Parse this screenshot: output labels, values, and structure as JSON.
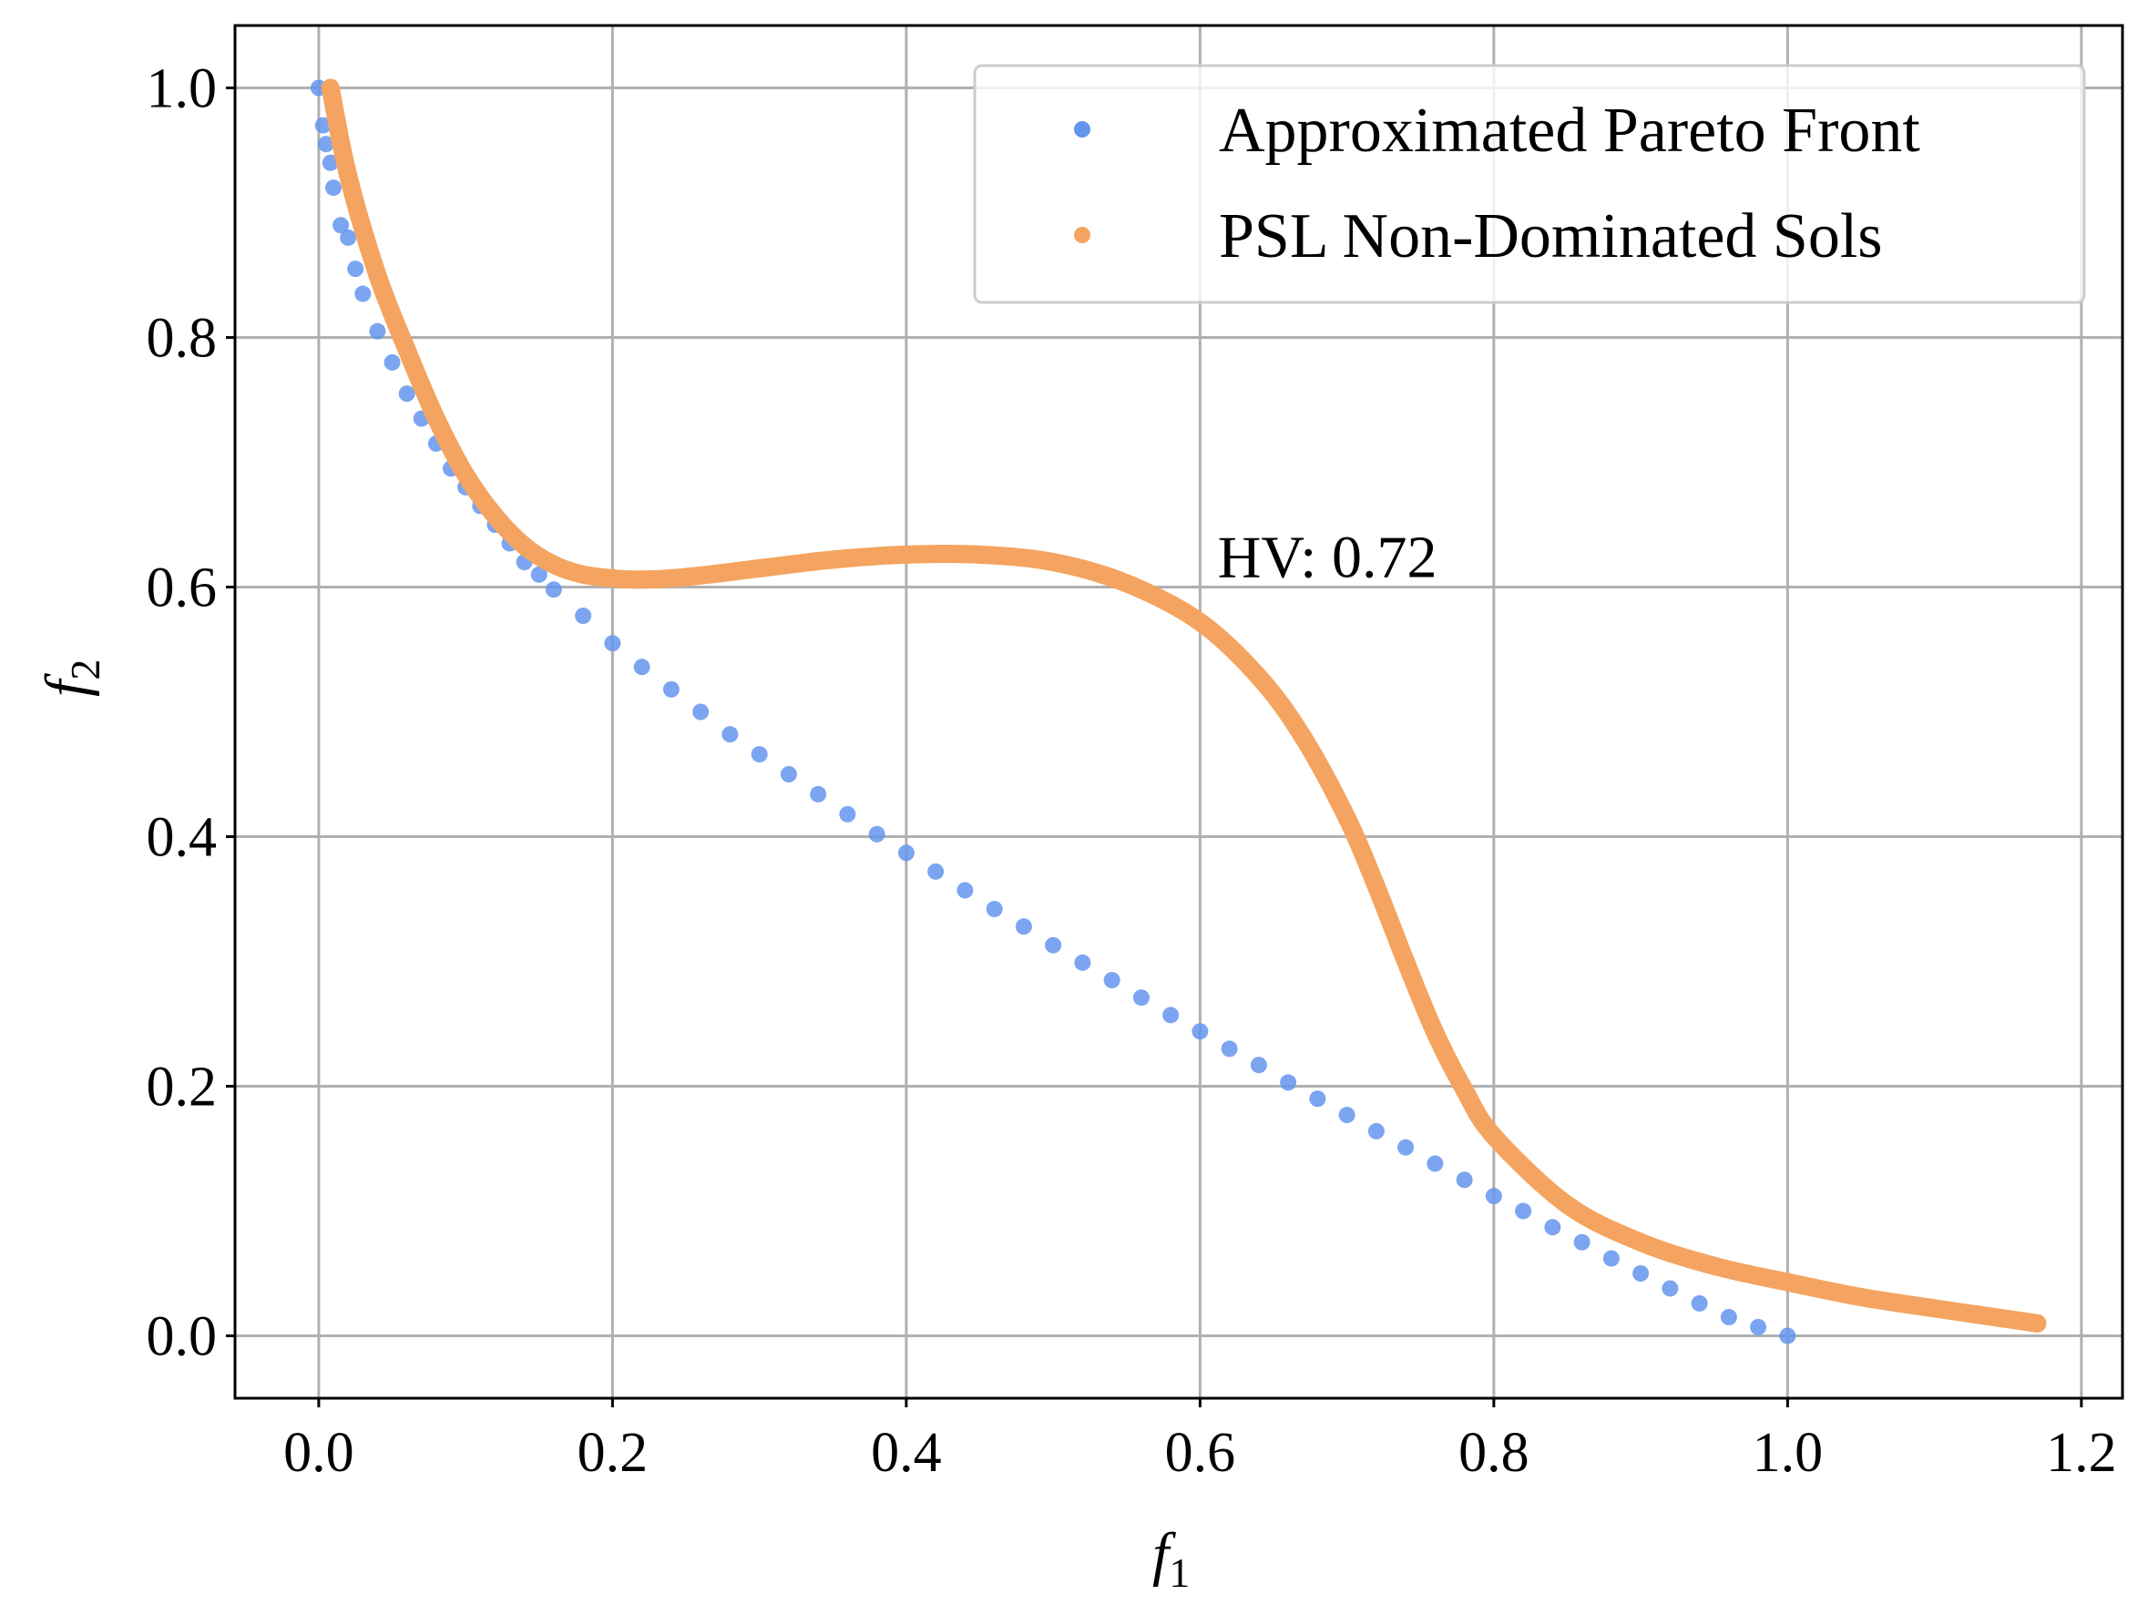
{
  "chart_data": {
    "type": "scatter",
    "xlabel": "f1",
    "ylabel": "f2",
    "xlim": [
      -0.057,
      1.228
    ],
    "ylim": [
      -0.05,
      1.05
    ],
    "xticks": [
      "0.0",
      "0.2",
      "0.4",
      "0.6",
      "0.8",
      "1.0",
      "1.2"
    ],
    "yticks": [
      "0.0",
      "0.2",
      "0.4",
      "0.6",
      "0.8",
      "1.0"
    ],
    "grid": true,
    "legend_position": "top-right",
    "annotation": "HV: 0.72",
    "series": [
      {
        "name": "Approximated Pareto Front",
        "color": "#6495ED",
        "points": [
          [
            0.0,
            1.0
          ],
          [
            0.003,
            0.97
          ],
          [
            0.005,
            0.955
          ],
          [
            0.008,
            0.94
          ],
          [
            0.01,
            0.92
          ],
          [
            0.015,
            0.89
          ],
          [
            0.02,
            0.88
          ],
          [
            0.025,
            0.855
          ],
          [
            0.03,
            0.835
          ],
          [
            0.04,
            0.805
          ],
          [
            0.05,
            0.78
          ],
          [
            0.06,
            0.755
          ],
          [
            0.07,
            0.735
          ],
          [
            0.08,
            0.715
          ],
          [
            0.09,
            0.695
          ],
          [
            0.1,
            0.68
          ],
          [
            0.11,
            0.665
          ],
          [
            0.12,
            0.65
          ],
          [
            0.13,
            0.635
          ],
          [
            0.14,
            0.62
          ],
          [
            0.15,
            0.61
          ],
          [
            0.16,
            0.598
          ],
          [
            0.18,
            0.577
          ],
          [
            0.2,
            0.555
          ],
          [
            0.22,
            0.536
          ],
          [
            0.24,
            0.518
          ],
          [
            0.26,
            0.5
          ],
          [
            0.28,
            0.482
          ],
          [
            0.3,
            0.466
          ],
          [
            0.32,
            0.45
          ],
          [
            0.34,
            0.434
          ],
          [
            0.36,
            0.418
          ],
          [
            0.38,
            0.402
          ],
          [
            0.4,
            0.387
          ],
          [
            0.42,
            0.372
          ],
          [
            0.44,
            0.357
          ],
          [
            0.46,
            0.342
          ],
          [
            0.48,
            0.328
          ],
          [
            0.5,
            0.313
          ],
          [
            0.52,
            0.299
          ],
          [
            0.54,
            0.285
          ],
          [
            0.56,
            0.271
          ],
          [
            0.58,
            0.257
          ],
          [
            0.6,
            0.244
          ],
          [
            0.62,
            0.23
          ],
          [
            0.64,
            0.217
          ],
          [
            0.66,
            0.203
          ],
          [
            0.68,
            0.19
          ],
          [
            0.7,
            0.177
          ],
          [
            0.72,
            0.164
          ],
          [
            0.74,
            0.151
          ],
          [
            0.76,
            0.138
          ],
          [
            0.78,
            0.125
          ],
          [
            0.8,
            0.112
          ],
          [
            0.82,
            0.1
          ],
          [
            0.84,
            0.087
          ],
          [
            0.86,
            0.075
          ],
          [
            0.88,
            0.062
          ],
          [
            0.9,
            0.05
          ],
          [
            0.92,
            0.038
          ],
          [
            0.94,
            0.026
          ],
          [
            0.96,
            0.015
          ],
          [
            0.98,
            0.007
          ],
          [
            1.0,
            0.0
          ]
        ]
      },
      {
        "name": "PSL Non-Dominated Sols",
        "color": "#F4A460",
        "points": [
          [
            0.008,
            1.0
          ],
          [
            0.02,
            0.93
          ],
          [
            0.04,
            0.85
          ],
          [
            0.06,
            0.79
          ],
          [
            0.08,
            0.735
          ],
          [
            0.1,
            0.69
          ],
          [
            0.12,
            0.657
          ],
          [
            0.14,
            0.633
          ],
          [
            0.16,
            0.618
          ],
          [
            0.18,
            0.61
          ],
          [
            0.2,
            0.607
          ],
          [
            0.22,
            0.606
          ],
          [
            0.25,
            0.608
          ],
          [
            0.3,
            0.615
          ],
          [
            0.35,
            0.622
          ],
          [
            0.4,
            0.626
          ],
          [
            0.45,
            0.626
          ],
          [
            0.5,
            0.62
          ],
          [
            0.55,
            0.603
          ],
          [
            0.6,
            0.572
          ],
          [
            0.64,
            0.528
          ],
          [
            0.67,
            0.48
          ],
          [
            0.7,
            0.415
          ],
          [
            0.72,
            0.36
          ],
          [
            0.74,
            0.3
          ],
          [
            0.76,
            0.243
          ],
          [
            0.78,
            0.197
          ],
          [
            0.8,
            0.16
          ],
          [
            0.85,
            0.105
          ],
          [
            0.9,
            0.075
          ],
          [
            0.95,
            0.056
          ],
          [
            1.0,
            0.043
          ],
          [
            1.05,
            0.031
          ],
          [
            1.1,
            0.022
          ],
          [
            1.17,
            0.01
          ]
        ]
      }
    ]
  }
}
